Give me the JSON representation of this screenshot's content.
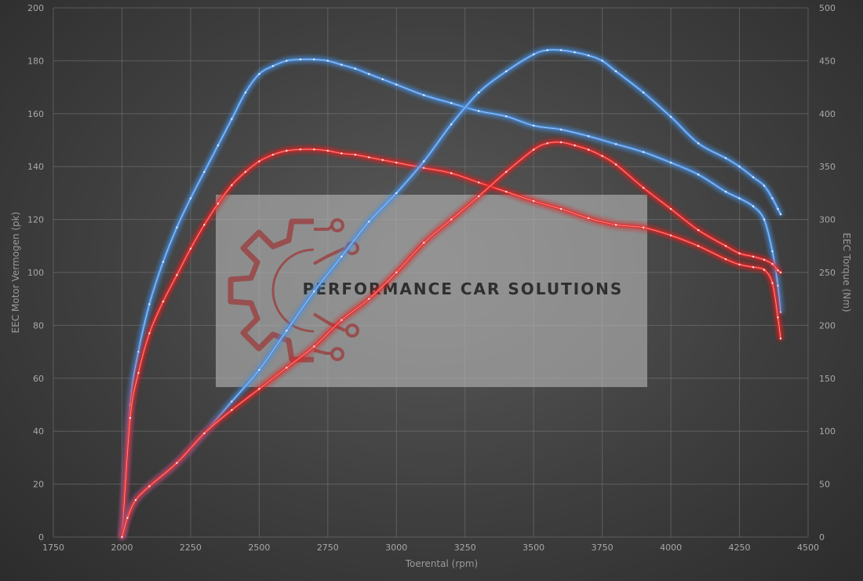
{
  "chart_data": {
    "type": "line",
    "xlabel": "Toerental (rpm)",
    "ylabel_left": "EEC Motor Vermogen (pk)",
    "ylabel_right": "EEC Torque (Nm)",
    "xlim": [
      1750,
      4500
    ],
    "ylim_left": [
      0,
      200
    ],
    "ylim_right": [
      0,
      500
    ],
    "x_ticks": [
      "1750",
      "2000",
      "2250",
      "2500",
      "2750",
      "3000",
      "3250",
      "3500",
      "3750",
      "4000",
      "4250",
      "4500"
    ],
    "y_left_ticks": [
      "0",
      "20",
      "40",
      "60",
      "80",
      "100",
      "120",
      "140",
      "160",
      "180",
      "200"
    ],
    "y_right_ticks": [
      "0",
      "50",
      "100",
      "150",
      "200",
      "250",
      "300",
      "350",
      "400",
      "450",
      "500"
    ],
    "grid": true,
    "series": [
      {
        "axis": "left",
        "color": "#4a8fe0",
        "x": [
          2000,
          2030,
          2060,
          2100,
          2150,
          2200,
          2250,
          2300,
          2350,
          2400,
          2450,
          2500,
          2550,
          2600,
          2650,
          2700,
          2750,
          2800,
          2850,
          2900,
          2950,
          3000,
          3100,
          3200,
          3300,
          3400,
          3500,
          3600,
          3700,
          3800,
          3900,
          4000,
          4100,
          4200,
          4250,
          4300,
          4340,
          4370,
          4390,
          4400
        ],
        "values": [
          0,
          50,
          70,
          88,
          104,
          117,
          128,
          138,
          148,
          158,
          168,
          175,
          178,
          180,
          180.5,
          180.5,
          180,
          178.5,
          177,
          175,
          173,
          171,
          167,
          164,
          161,
          159,
          155.5,
          154,
          151.5,
          148.5,
          145.5,
          141.5,
          137,
          130.5,
          128,
          125,
          120,
          108,
          95,
          85
        ]
      },
      {
        "axis": "left",
        "color": "#e82828",
        "x": [
          2000,
          2030,
          2060,
          2100,
          2150,
          2200,
          2250,
          2300,
          2350,
          2400,
          2450,
          2500,
          2550,
          2600,
          2650,
          2700,
          2750,
          2800,
          2850,
          2900,
          2950,
          3000,
          3100,
          3200,
          3300,
          3400,
          3500,
          3600,
          3700,
          3800,
          3900,
          4000,
          4100,
          4200,
          4250,
          4300,
          4340,
          4370,
          4390,
          4400
        ],
        "values": [
          0,
          45,
          62,
          77,
          89,
          99,
          109,
          118,
          126,
          133,
          138,
          142,
          144.5,
          146,
          146.5,
          146.5,
          146,
          145,
          144.5,
          143.5,
          142.5,
          141.5,
          139.5,
          137.5,
          134,
          130.5,
          127,
          124,
          120.5,
          118,
          117,
          114,
          110,
          105,
          103,
          102,
          101,
          96,
          83,
          75
        ]
      },
      {
        "axis": "right",
        "color": "#4a8fe0",
        "x": [
          2000,
          2020,
          2050,
          2100,
          2200,
          2300,
          2400,
          2500,
          2600,
          2700,
          2800,
          2900,
          3000,
          3100,
          3200,
          3300,
          3400,
          3500,
          3550,
          3600,
          3650,
          3700,
          3750,
          3800,
          3900,
          4000,
          4100,
          4200,
          4250,
          4300,
          4340,
          4370,
          4390,
          4400
        ],
        "values": [
          0,
          20,
          35,
          48,
          70,
          98,
          128,
          158,
          195,
          232,
          265,
          298,
          325,
          355,
          390,
          420,
          440,
          456,
          460,
          460,
          458,
          455,
          450,
          440,
          420,
          397,
          372,
          358,
          350,
          340,
          332,
          320,
          310,
          305
        ]
      },
      {
        "axis": "right",
        "color": "#e82828",
        "x": [
          2000,
          2020,
          2050,
          2100,
          2200,
          2300,
          2400,
          2500,
          2600,
          2700,
          2800,
          2900,
          3000,
          3100,
          3200,
          3300,
          3400,
          3500,
          3550,
          3600,
          3650,
          3700,
          3750,
          3800,
          3900,
          4000,
          4100,
          4200,
          4250,
          4300,
          4340,
          4370,
          4390,
          4400
        ],
        "values": [
          0,
          18,
          35,
          48,
          70,
          98,
          120,
          140,
          160,
          180,
          205,
          225,
          250,
          278,
          300,
          322,
          345,
          366,
          372,
          373,
          370,
          366,
          360,
          352,
          330,
          310,
          290,
          275,
          268,
          265,
          262,
          258,
          252,
          250
        ]
      }
    ]
  },
  "watermark": {
    "text": "PERFORMANCE CAR SOLUTIONS",
    "logo_icon": "gear-circuit-icon",
    "text_color": "#2f2f2f",
    "logo_color": "#9a4444"
  }
}
